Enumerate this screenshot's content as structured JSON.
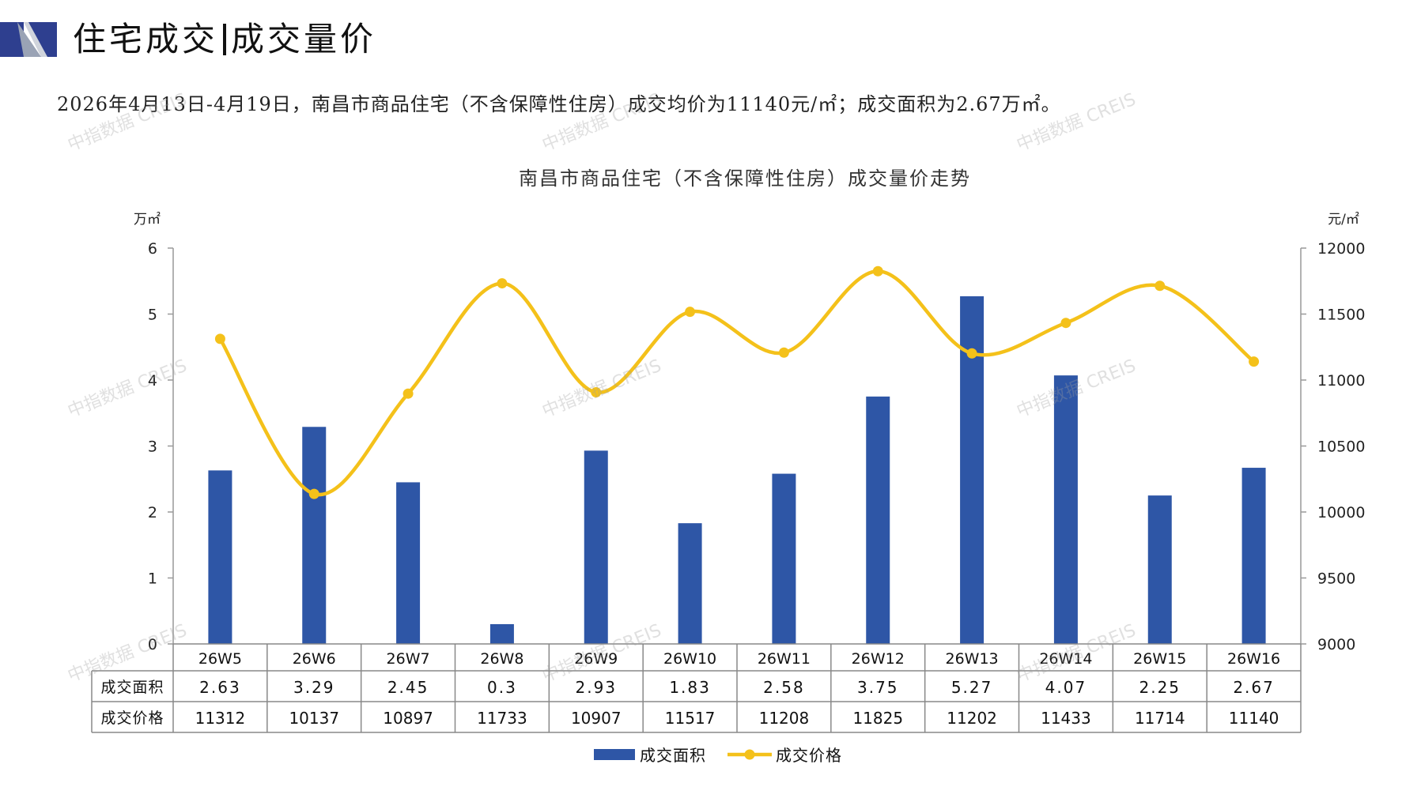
{
  "header": {
    "title_left": "住宅成交",
    "title_right": "成交量价"
  },
  "summary": "2026年4月13日-4月19日，南昌市商品住宅（不含保障性住房）成交均价为11140元/㎡；成交面积为2.67万㎡。",
  "watermark": "中指数据 CREIS",
  "chart_data": {
    "type": "bar",
    "title": "南昌市商品住宅（不含保障性住房）成交量价走势",
    "categories": [
      "26W5",
      "26W6",
      "26W7",
      "26W8",
      "26W9",
      "26W10",
      "26W11",
      "26W12",
      "26W13",
      "26W14",
      "26W15",
      "26W16"
    ],
    "series": [
      {
        "name": "成交面积",
        "type": "bar",
        "axis": "left",
        "color": "#2E56A6",
        "values": [
          2.63,
          3.29,
          2.45,
          0.3,
          2.93,
          1.83,
          2.58,
          3.75,
          5.27,
          4.07,
          2.25,
          2.67
        ],
        "labels": [
          "2.63",
          "3.29",
          "2.45",
          "0.3",
          "2.93",
          "1.83",
          "2.58",
          "3.75",
          "5.27",
          "4.07",
          "2.25",
          "2.67"
        ]
      },
      {
        "name": "成交价格",
        "type": "line",
        "axis": "right",
        "color": "#F4C11A",
        "smooth": true,
        "values": [
          11312,
          10137,
          10897,
          11733,
          10907,
          11517,
          11208,
          11825,
          11202,
          11433,
          11714,
          11140
        ],
        "labels": [
          "11312",
          "10137",
          "10897",
          "11733",
          "10907",
          "11517",
          "11208",
          "11825",
          "11202",
          "11433",
          "11714",
          "11140"
        ]
      }
    ],
    "y_left": {
      "unit": "万㎡",
      "min": 0,
      "max": 6,
      "ticks": [
        "0",
        "1",
        "2",
        "3",
        "4",
        "5",
        "6"
      ]
    },
    "y_right": {
      "unit": "元/㎡",
      "min": 9000,
      "max": 12000,
      "ticks": [
        "9000",
        "9500",
        "10000",
        "10500",
        "11000",
        "11500",
        "12000"
      ]
    },
    "grid": false,
    "legend": "bottom",
    "data_table": true
  }
}
